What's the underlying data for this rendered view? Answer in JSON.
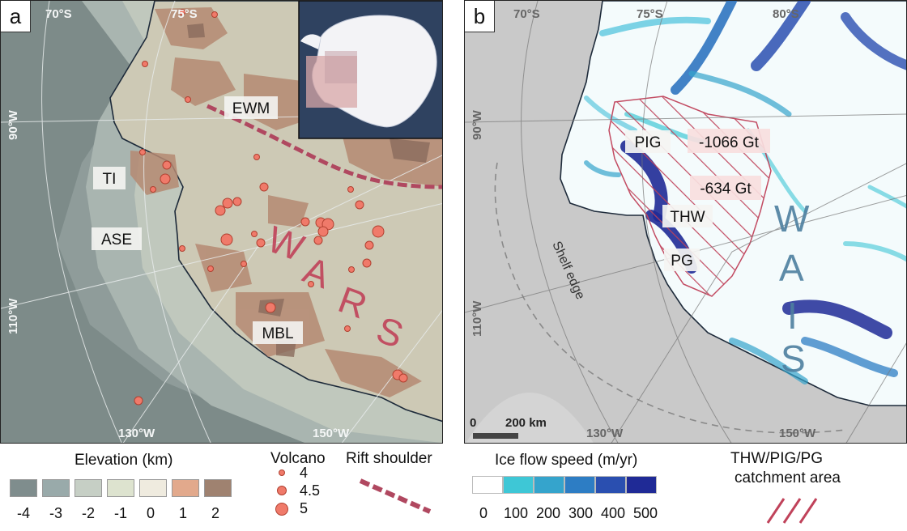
{
  "panel_a": {
    "tag": "a",
    "lat_labels": [
      "70°S",
      "75°S"
    ],
    "lon_labels": [
      "90°W",
      "110°W",
      "130°W",
      "150°W"
    ],
    "region_labels": {
      "ti": "TI",
      "ase": "ASE",
      "ewm": "EWM",
      "mbl": "MBL"
    },
    "rift_letters": [
      "W",
      "A",
      "R",
      "S"
    ]
  },
  "panel_b": {
    "tag": "b",
    "lat_labels": [
      "70°S",
      "75°S",
      "80°S"
    ],
    "lon_labels": [
      "90°W",
      "110°W",
      "130°W",
      "150°W"
    ],
    "glacier_labels": {
      "pig": "PIG",
      "thw": "THW",
      "pg": "PG"
    },
    "mass_labels": [
      "-1066 Gt",
      "-634 Gt"
    ],
    "shelf_label": "Shelf edge",
    "ice_letters": [
      "W",
      "A",
      "I",
      "S"
    ],
    "scale_bar": {
      "zero": "0",
      "label": "200 km"
    }
  },
  "legend": {
    "elevation": {
      "title": "Elevation (km)",
      "ticks": [
        "-4",
        "-3",
        "-2",
        "-1",
        "0",
        "1",
        "2"
      ],
      "colors": [
        "#7f8d8d",
        "#99aaaa",
        "#c6cfc5",
        "#dde3cf",
        "#efebdf",
        "#e2a98c",
        "#9f8270"
      ]
    },
    "volcano": {
      "title": "Volcano",
      "sizes": [
        "4",
        "4.5",
        "5"
      ]
    },
    "rift": {
      "title": "Rift shoulder",
      "color": "#b04860"
    },
    "ice_speed": {
      "title": "Ice flow speed (m/yr)",
      "ticks": [
        "0",
        "100",
        "200",
        "300",
        "400",
        "500"
      ],
      "colors": [
        "#ffffff",
        "#3ec7d6",
        "#35a4cc",
        "#2d7dc4",
        "#2a4fb0",
        "#1f2a96"
      ]
    },
    "catchment": {
      "title_line1": "THW/PIG/PG",
      "title_line2": "catchment area",
      "color": "#c0425a"
    }
  }
}
